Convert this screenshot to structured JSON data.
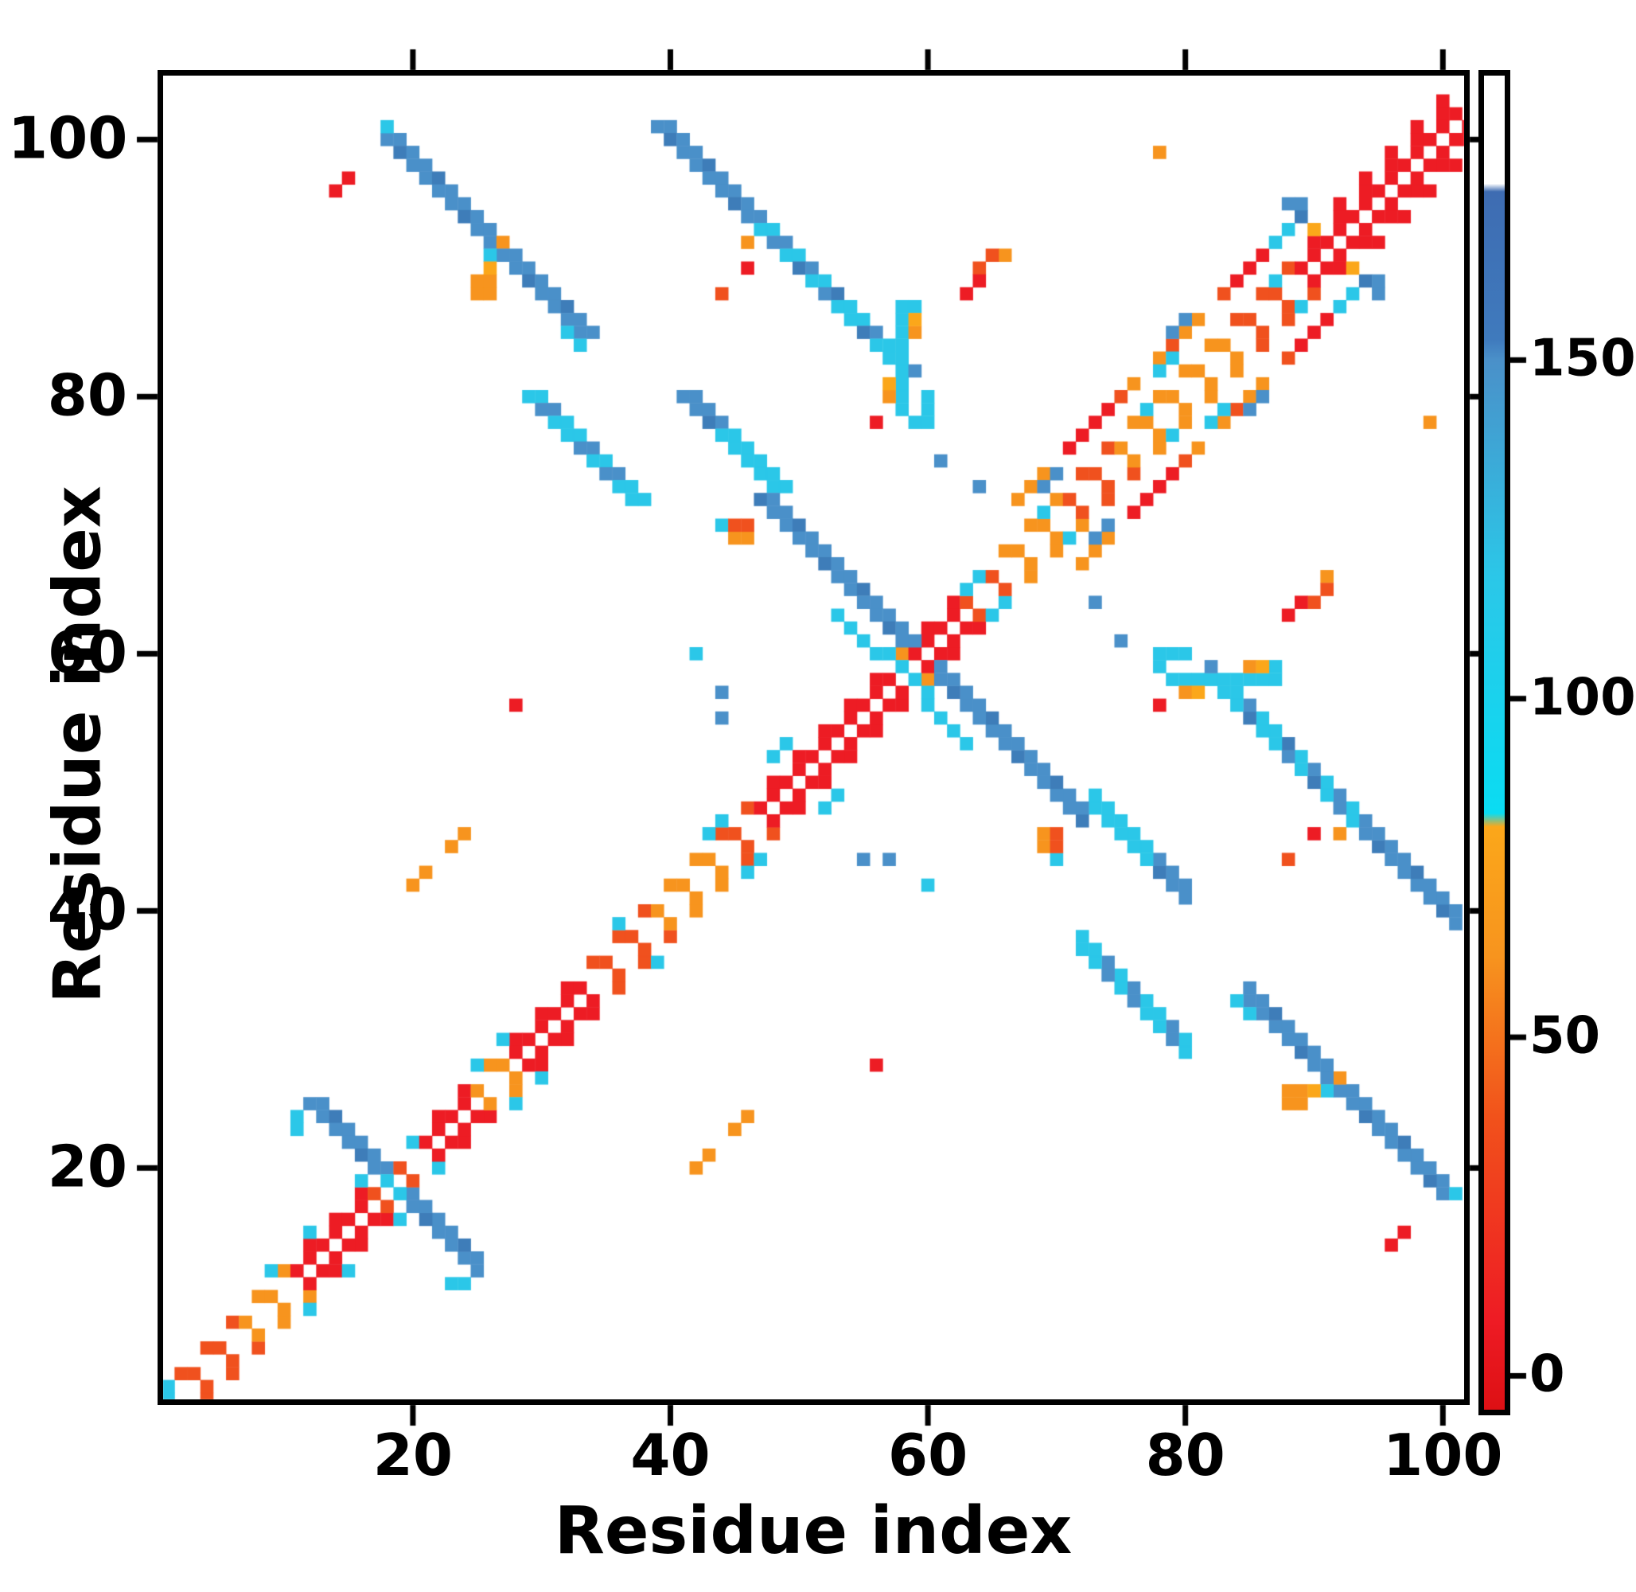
{
  "figure": {
    "background": "#ffffff",
    "frame_color": "#000000"
  },
  "chart_data": {
    "type": "heatmap",
    "title": "",
    "xlabel": "Residue index",
    "ylabel": "Residue index",
    "x_ticks": [
      20,
      40,
      60,
      80,
      100
    ],
    "y_ticks": [
      20,
      40,
      60,
      80,
      100
    ],
    "n_residues": 102,
    "axis_range": {
      "x": [
        1,
        102
      ],
      "y": [
        2,
        104
      ]
    },
    "grid": false,
    "legend_position": "right-colorbar",
    "colorbar": {
      "ticks": [
        0,
        50,
        100,
        150
      ],
      "value_range": [
        -5,
        192
      ],
      "gradient_stops": [
        [
          0.0,
          "#ffffff"
        ],
        [
          8.1,
          "#ffffff"
        ],
        [
          8.7,
          "#3e6cb2"
        ],
        [
          19.8,
          "#3f7abd"
        ],
        [
          21.3,
          "#4a90c9"
        ],
        [
          37.6,
          "#2bc7e8"
        ],
        [
          55.3,
          "#0adcf2"
        ],
        [
          56.3,
          "#fba71a"
        ],
        [
          66.0,
          "#f7941e"
        ],
        [
          78.2,
          "#f1511b"
        ],
        [
          93.4,
          "#ee1b24"
        ],
        [
          100.0,
          "#dd1014"
        ]
      ]
    },
    "palette": {
      "RD": "#ed1c24",
      "O2": "#f0511e",
      "OR": "#f7941e",
      "GO": "#fba71a",
      "CY": "#2bc7e8",
      "CB": "#0adcf2",
      "SB": "#4a90c9",
      "S2": "#3e7db9"
    },
    "diagonal": {
      "description": "near-diagonal contact band, checkered at offsets 1-2",
      "red_ranges": [
        [
          11,
          16
        ],
        [
          21,
          24
        ],
        [
          28,
          33
        ],
        [
          47,
          57
        ],
        [
          59,
          62
        ],
        [
          89,
          101
        ]
      ],
      "orangered_ranges": [
        [
          1,
          6
        ],
        [
          17,
          20
        ],
        [
          34,
          38
        ],
        [
          44,
          46
        ],
        [
          63,
          65
        ],
        [
          71,
          74
        ],
        [
          84,
          88
        ]
      ],
      "default_color": "OR",
      "corner_widen_range": [
        92,
        100
      ]
    },
    "runs": [
      {
        "name": "streak-18-100",
        "x": 18,
        "y": 100,
        "dx": 1,
        "dy": -1,
        "len": 16,
        "w": 2,
        "colors": [
          "SB"
        ]
      },
      {
        "name": "streak-39-101",
        "x": 39,
        "y": 101,
        "dx": 1,
        "dy": -1,
        "len": 18,
        "w": 2,
        "colors": [
          "SB",
          "SB",
          "SB",
          "SB",
          "SB",
          "SB",
          "SB",
          "SB",
          "CY",
          "SB",
          "CY",
          "SB",
          "CY",
          "SB",
          "CY",
          "CY",
          "SB",
          "CY"
        ]
      },
      {
        "name": "streak-29-80",
        "x": 29,
        "y": 80,
        "dx": 1,
        "dy": -1,
        "len": 9,
        "w": 2,
        "colors": [
          "CY",
          "SB",
          "CY",
          "CY",
          "SB",
          "CY",
          "SB",
          "CY",
          "CY"
        ]
      },
      {
        "name": "streak-41-80",
        "x": 41,
        "y": 80,
        "dx": 1,
        "dy": -1,
        "len": 8,
        "w": 2,
        "colors": [
          "SB",
          "SB",
          "SB",
          "CY",
          "CY",
          "CY",
          "CY",
          "CY"
        ]
      },
      {
        "name": "x-arm-19",
        "x": 12,
        "y": 25,
        "dx": 1,
        "dy": -1,
        "len": 6,
        "w": 2,
        "colors": [
          "SB"
        ]
      },
      {
        "name": "x-arm-60",
        "x": 47,
        "y": 72,
        "dx": 1,
        "dy": -1,
        "len": 12,
        "w": 2,
        "colors": [
          "SB"
        ]
      },
      {
        "name": "vertical-58",
        "x": 58,
        "y": 79,
        "dx": 0,
        "dy": 1,
        "len": 9,
        "w": 1,
        "colors": [
          "CY"
        ]
      },
      {
        "name": "offset5-band",
        "x": 67,
        "y": 72,
        "dx": 1,
        "dy": 1,
        "len": 22,
        "w": 1,
        "colors": [
          "OR",
          "OR",
          "OR",
          "",
          "RD",
          "RD",
          "RD",
          "RD",
          "O2",
          "OR",
          "",
          "OR",
          "O2",
          "OR",
          "OR",
          "",
          "O2",
          "RD",
          "RD",
          "RD",
          "RD",
          "RD"
        ]
      }
    ],
    "cells": [
      [
        1,
        2,
        "CY"
      ],
      [
        1,
        3,
        "CY"
      ],
      [
        9,
        12,
        "CY"
      ],
      [
        12,
        15,
        "CY"
      ],
      [
        16,
        19,
        "CY"
      ],
      [
        25,
        28,
        "CY"
      ],
      [
        27,
        30,
        "CY"
      ],
      [
        36,
        39,
        "CY"
      ],
      [
        43,
        46,
        "CY"
      ],
      [
        44,
        47,
        "CY"
      ],
      [
        48,
        52,
        "CY"
      ],
      [
        49,
        53,
        "CY"
      ],
      [
        63,
        65,
        "CY"
      ],
      [
        64,
        66,
        "CY"
      ],
      [
        69,
        71,
        "CY"
      ],
      [
        77,
        79,
        "CY"
      ],
      [
        87,
        89,
        "CY"
      ],
      [
        18,
        101,
        "CY"
      ],
      [
        32,
        85,
        "CY"
      ],
      [
        33,
        84,
        "CY"
      ],
      [
        56,
        84,
        "CY"
      ],
      [
        57,
        83,
        "CY"
      ],
      [
        11,
        23,
        "CY"
      ],
      [
        11,
        24,
        "CY"
      ],
      [
        13,
        25,
        "SB"
      ],
      [
        18,
        19,
        "CY"
      ],
      [
        20,
        22,
        "CY"
      ],
      [
        44,
        70,
        "CY"
      ],
      [
        53,
        63,
        "CY"
      ],
      [
        54,
        62,
        "CY"
      ],
      [
        55,
        61,
        "CY"
      ],
      [
        56,
        60,
        "CY"
      ],
      [
        57,
        60,
        "CY"
      ],
      [
        58,
        59,
        "CY"
      ],
      [
        59,
        87,
        "CY"
      ],
      [
        59,
        78,
        "CY"
      ],
      [
        60,
        78,
        "CY"
      ],
      [
        60,
        79,
        "CY"
      ],
      [
        60,
        80,
        "CY"
      ],
      [
        26,
        91,
        "CY"
      ],
      [
        42,
        60,
        "CY"
      ],
      [
        78,
        82,
        "CY"
      ],
      [
        79,
        83,
        "CY"
      ],
      [
        87,
        92,
        "CY"
      ],
      [
        88,
        93,
        "CY"
      ],
      [
        44,
        57,
        "SB"
      ],
      [
        44,
        55,
        "SB"
      ],
      [
        64,
        73,
        "SB"
      ],
      [
        61,
        75,
        "SB"
      ],
      [
        59,
        82,
        "SB"
      ],
      [
        69,
        73,
        "SB"
      ],
      [
        70,
        74,
        "SB"
      ],
      [
        79,
        85,
        "SB"
      ],
      [
        80,
        86,
        "SB"
      ],
      [
        88,
        95,
        "SB"
      ],
      [
        89,
        94,
        "SB"
      ],
      [
        89,
        95,
        "SB"
      ],
      [
        45,
        69,
        "OR"
      ],
      [
        46,
        69,
        "OR"
      ],
      [
        25,
        88,
        "OR"
      ],
      [
        26,
        88,
        "OR"
      ],
      [
        25,
        89,
        "OR"
      ],
      [
        26,
        89,
        "OR"
      ],
      [
        27,
        92,
        "OR"
      ],
      [
        46,
        92,
        "OR"
      ],
      [
        78,
        99,
        "OR"
      ],
      [
        20,
        42,
        "OR"
      ],
      [
        21,
        43,
        "OR"
      ],
      [
        23,
        45,
        "OR"
      ],
      [
        24,
        46,
        "OR"
      ],
      [
        66,
        91,
        "OR"
      ],
      [
        59,
        85,
        "OR"
      ],
      [
        57,
        80,
        "OR"
      ],
      [
        26,
        90,
        "GO"
      ],
      [
        59,
        86,
        "GO"
      ],
      [
        57,
        81,
        "GO"
      ],
      [
        90,
        93,
        "GO"
      ],
      [
        45,
        70,
        "O2"
      ],
      [
        46,
        70,
        "O2"
      ],
      [
        44,
        88,
        "O2"
      ],
      [
        64,
        90,
        "O2"
      ],
      [
        65,
        91,
        "O2"
      ],
      [
        14,
        96,
        "RD"
      ],
      [
        15,
        97,
        "RD"
      ],
      [
        28,
        56,
        "RD"
      ],
      [
        46,
        90,
        "RD"
      ],
      [
        56,
        78,
        "RD"
      ],
      [
        63,
        88,
        "RD"
      ],
      [
        64,
        89,
        "RD"
      ]
    ]
  }
}
